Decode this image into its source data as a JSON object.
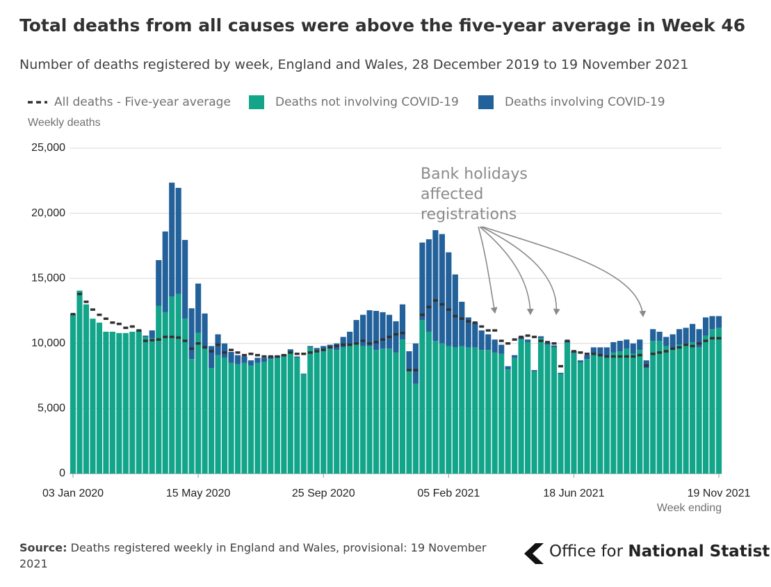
{
  "chart_data": {
    "type": "bar",
    "title": "Total deaths from all causes were above the five-year average in Week 46",
    "subtitle": "Number of deaths registered by week, England and Wales, 28 December 2019 to 19 November 2021",
    "y_label": "Weekly deaths",
    "x_label": "Week ending",
    "annotation": "Bank holidays affected registrations",
    "stacked": true,
    "grid": true,
    "ylim": [
      0,
      25000
    ],
    "yticks": [
      0,
      {
        "value": 5000,
        "label": "5,000"
      },
      {
        "value": 10000,
        "label": "10,000"
      },
      {
        "value": 15000,
        "label": "15,000"
      },
      {
        "value": 20000,
        "label": "20,000"
      },
      {
        "value": 25000,
        "label": "25,000"
      }
    ],
    "categories": [
      "03 Jan 2020",
      null,
      null,
      null,
      null,
      null,
      null,
      null,
      null,
      null,
      null,
      null,
      null,
      null,
      null,
      null,
      null,
      null,
      null,
      "15 May 2020",
      null,
      null,
      null,
      null,
      null,
      null,
      null,
      null,
      null,
      null,
      null,
      null,
      null,
      null,
      null,
      null,
      null,
      null,
      "25 Sep 2020",
      null,
      null,
      null,
      null,
      null,
      null,
      null,
      null,
      null,
      null,
      null,
      null,
      null,
      null,
      null,
      null,
      null,
      null,
      "05 Feb 2021",
      null,
      null,
      null,
      null,
      null,
      null,
      null,
      null,
      null,
      null,
      null,
      null,
      null,
      null,
      null,
      null,
      null,
      null,
      "18 Jun 2021",
      null,
      null,
      null,
      null,
      null,
      null,
      null,
      null,
      null,
      null,
      null,
      null,
      null,
      null,
      null,
      null,
      null,
      null,
      null,
      null,
      null,
      "19 Nov 2021"
    ],
    "series": [
      {
        "name": "All deaths - Five-year average",
        "type": "dash",
        "color": "#323132",
        "values": [
          12250,
          13800,
          13200,
          12600,
          12200,
          11900,
          11600,
          11500,
          11200,
          11300,
          11000,
          10200,
          10250,
          10300,
          10500,
          10500,
          10450,
          10200,
          9600,
          10000,
          9700,
          9400,
          9900,
          9300,
          9500,
          9300,
          9100,
          9200,
          9100,
          9000,
          9000,
          9000,
          9100,
          9300,
          9200,
          9200,
          9300,
          9400,
          9500,
          9700,
          9800,
          9900,
          9900,
          10000,
          10200,
          10000,
          10100,
          10300,
          10500,
          10700,
          10800,
          7950,
          7950,
          12200,
          12800,
          13300,
          13000,
          12600,
          12100,
          11900,
          11700,
          11600,
          11300,
          11000,
          11000,
          10200,
          10000,
          10300,
          10500,
          10600,
          10500,
          10200,
          10100,
          10000,
          8250,
          10200,
          9400,
          9300,
          9200,
          9200,
          9100,
          9000,
          9000,
          9000,
          9000,
          9000,
          9100,
          8300,
          9200,
          9300,
          9400,
          9600,
          9700,
          9900,
          9800,
          10000,
          10200,
          10400,
          10400
        ]
      },
      {
        "name": "Deaths not involving COVID-19",
        "type": "bar",
        "color": "#12a58a",
        "values": [
          12250,
          14060,
          13000,
          11900,
          11600,
          10900,
          10900,
          10800,
          10800,
          10900,
          11000,
          10500,
          10400,
          12900,
          12400,
          13600,
          13800,
          11900,
          8800,
          10800,
          9700,
          8100,
          9100,
          8900,
          8500,
          8400,
          8500,
          8300,
          8500,
          8600,
          8800,
          8900,
          9000,
          9400,
          8900,
          7600,
          9700,
          9500,
          9550,
          9600,
          9500,
          9700,
          9900,
          10100,
          9800,
          9800,
          9500,
          9600,
          9600,
          9300,
          10300,
          7900,
          6900,
          11800,
          10900,
          10200,
          10000,
          9800,
          9700,
          9800,
          9700,
          9700,
          9500,
          9500,
          9300,
          9200,
          8000,
          8900,
          10300,
          10100,
          7850,
          10400,
          9900,
          9700,
          7650,
          10050,
          9250,
          8550,
          8800,
          9200,
          9100,
          9000,
          9300,
          9400,
          9600,
          9200,
          9500,
          8100,
          10200,
          10200,
          9800,
          9600,
          9900,
          10000,
          10100,
          9700,
          10600,
          11100,
          11200
        ]
      },
      {
        "name": "Deaths involving COVID-19",
        "type": "bar",
        "color": "#23619b",
        "values": [
          0,
          0,
          0,
          0,
          0,
          0,
          0,
          0,
          0,
          0,
          10,
          100,
          600,
          3500,
          6200,
          8750,
          8150,
          6050,
          3900,
          3800,
          2600,
          1700,
          1600,
          1100,
          850,
          700,
          500,
          400,
          400,
          300,
          200,
          150,
          150,
          150,
          100,
          80,
          100,
          150,
          250,
          300,
          500,
          800,
          1000,
          1700,
          2400,
          2750,
          3000,
          2800,
          2600,
          2400,
          2700,
          1500,
          3100,
          5950,
          7100,
          8500,
          8400,
          7200,
          5600,
          3400,
          2300,
          1900,
          1500,
          1200,
          1000,
          700,
          250,
          200,
          200,
          200,
          100,
          150,
          150,
          150,
          100,
          150,
          150,
          150,
          300,
          500,
          600,
          700,
          800,
          800,
          700,
          800,
          800,
          600,
          900,
          700,
          700,
          1100,
          1200,
          1200,
          1400,
          1400,
          1400,
          1000,
          900
        ]
      }
    ]
  },
  "footer": {
    "source_label": "Source:",
    "source_text": "Deaths registered weekly in England and Wales, provisional: 19 November 2021",
    "logo_light": "Office for",
    "logo_bold": "National Statistics"
  }
}
